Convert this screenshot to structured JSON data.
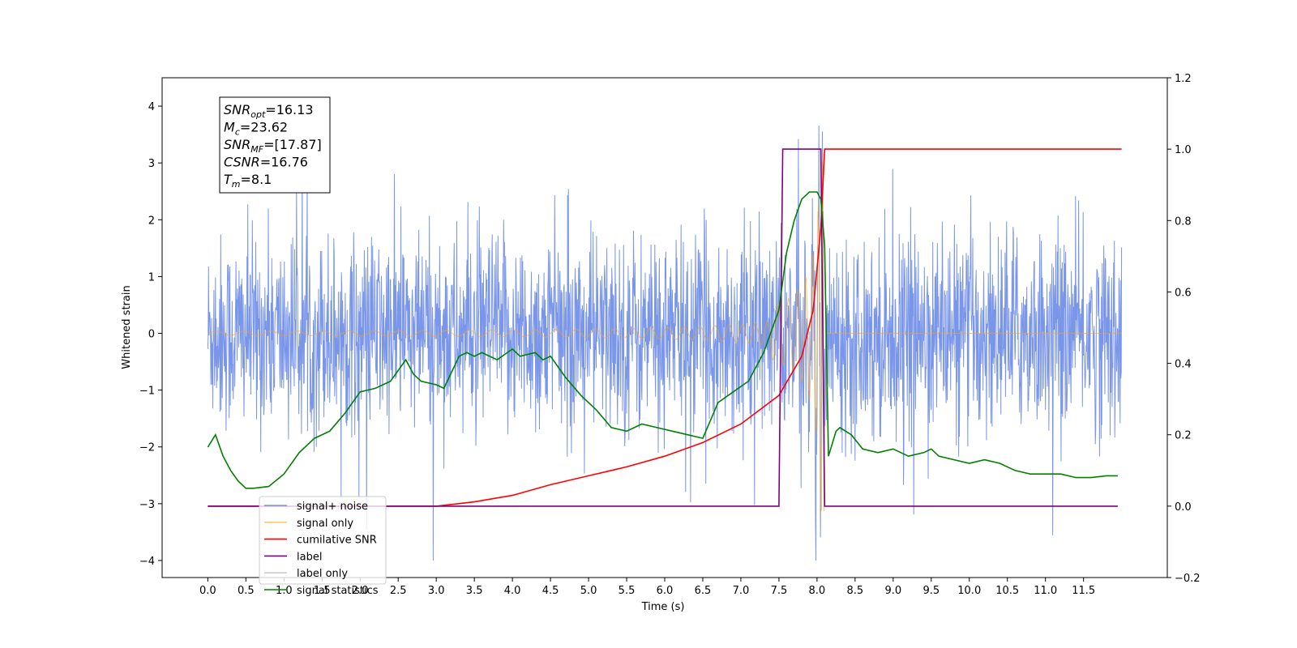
{
  "chart_data": {
    "type": "line",
    "xlabel": "Time (s)",
    "ylabel": "Whitened strain",
    "xlim": [
      -0.6,
      12.6
    ],
    "ylim": [
      -4.3,
      4.5
    ],
    "y2lim": [
      -0.2,
      1.2
    ],
    "grid": false,
    "legend_position": "lower-left",
    "x_ticks": [
      "0.0",
      "0.5",
      "1.0",
      "1.5",
      "2.0",
      "2.5",
      "3.0",
      "3.5",
      "4.0",
      "4.5",
      "5.0",
      "5.5",
      "6.0",
      "6.5",
      "7.0",
      "7.5",
      "8.0",
      "8.5",
      "9.0",
      "9.5",
      "10.0",
      "10.5",
      "11.0",
      "11.5"
    ],
    "y_ticks": [
      "4",
      "3",
      "2",
      "1",
      "0",
      "−1",
      "−2",
      "−3",
      "−4"
    ],
    "y2_ticks": [
      "1.2",
      "1.0",
      "0.8",
      "0.6",
      "0.4",
      "0.2",
      "0.0",
      "−0.2"
    ],
    "info_box": [
      {
        "main": "SNR",
        "sub": "opt",
        "value": "=16.13"
      },
      {
        "main": "M",
        "sub": "c",
        "value": "=23.62"
      },
      {
        "main": "SNR",
        "sub": "MF",
        "value": "=[17.87]"
      },
      {
        "main": "CSNR",
        "sub": "",
        "value": "=16.76"
      },
      {
        "main": "T",
        "sub": "m",
        "value": "=8.1"
      }
    ],
    "series": [
      {
        "name": "signal+ noise",
        "color": "#4169e1",
        "axis": "left",
        "duration": 12.0,
        "noise_sigma": 0.85,
        "merger_time": 8.1
      },
      {
        "name": "signal only",
        "color": "#ffa500",
        "axis": "left",
        "merger_time": 8.1,
        "peak_amplitude": 3.2,
        "min_amplitude": 0.02
      },
      {
        "name": "cumilative SNR",
        "color": "#ff0000",
        "axis": "right",
        "x": [
          0.0,
          3.0,
          3.5,
          4.0,
          4.5,
          5.0,
          5.5,
          6.0,
          6.5,
          7.0,
          7.5,
          7.8,
          7.95,
          8.05,
          8.1,
          8.12,
          12.0
        ],
        "y": [
          0.0,
          0.0,
          0.012,
          0.03,
          0.06,
          0.085,
          0.11,
          0.14,
          0.178,
          0.23,
          0.31,
          0.42,
          0.55,
          0.78,
          1.0,
          1.0,
          1.0
        ]
      },
      {
        "name": "label",
        "color": "#800080",
        "axis": "right",
        "x": [
          0.0,
          7.5,
          7.55,
          8.05,
          8.1,
          11.95
        ],
        "y": [
          0.0,
          0.0,
          1.0,
          1.0,
          0.0,
          0.0
        ]
      },
      {
        "name": "label only",
        "color": "#cccccc",
        "axis": "right",
        "hidden": true
      },
      {
        "name": "signal statistics",
        "color": "#008000",
        "axis": "right",
        "x": [
          0.0,
          0.1,
          0.2,
          0.3,
          0.4,
          0.5,
          0.6,
          0.8,
          1.0,
          1.2,
          1.4,
          1.6,
          1.8,
          2.0,
          2.2,
          2.3,
          2.4,
          2.6,
          2.7,
          2.8,
          3.0,
          3.1,
          3.3,
          3.4,
          3.5,
          3.6,
          3.8,
          4.0,
          4.1,
          4.3,
          4.4,
          4.5,
          4.7,
          4.9,
          5.1,
          5.3,
          5.5,
          5.7,
          5.9,
          6.1,
          6.3,
          6.5,
          6.7,
          6.9,
          7.1,
          7.3,
          7.5,
          7.6,
          7.7,
          7.8,
          7.9,
          8.0,
          8.05,
          8.1,
          8.15,
          8.25,
          8.3,
          8.45,
          8.6,
          8.8,
          9.0,
          9.2,
          9.4,
          9.5,
          9.6,
          9.8,
          10.0,
          10.2,
          10.4,
          10.6,
          10.8,
          11.0,
          11.2,
          11.4,
          11.6,
          11.8,
          11.95
        ],
        "y": [
          0.165,
          0.2,
          0.14,
          0.1,
          0.07,
          0.05,
          0.05,
          0.055,
          0.09,
          0.15,
          0.19,
          0.21,
          0.26,
          0.32,
          0.33,
          0.34,
          0.35,
          0.41,
          0.37,
          0.35,
          0.34,
          0.33,
          0.42,
          0.43,
          0.42,
          0.43,
          0.41,
          0.44,
          0.42,
          0.43,
          0.41,
          0.42,
          0.36,
          0.31,
          0.27,
          0.22,
          0.21,
          0.23,
          0.22,
          0.21,
          0.2,
          0.19,
          0.29,
          0.32,
          0.35,
          0.43,
          0.55,
          0.71,
          0.8,
          0.86,
          0.88,
          0.88,
          0.86,
          0.73,
          0.14,
          0.21,
          0.22,
          0.2,
          0.16,
          0.15,
          0.16,
          0.14,
          0.15,
          0.16,
          0.14,
          0.13,
          0.12,
          0.13,
          0.12,
          0.1,
          0.09,
          0.09,
          0.09,
          0.08,
          0.08,
          0.085,
          0.085
        ]
      }
    ]
  }
}
